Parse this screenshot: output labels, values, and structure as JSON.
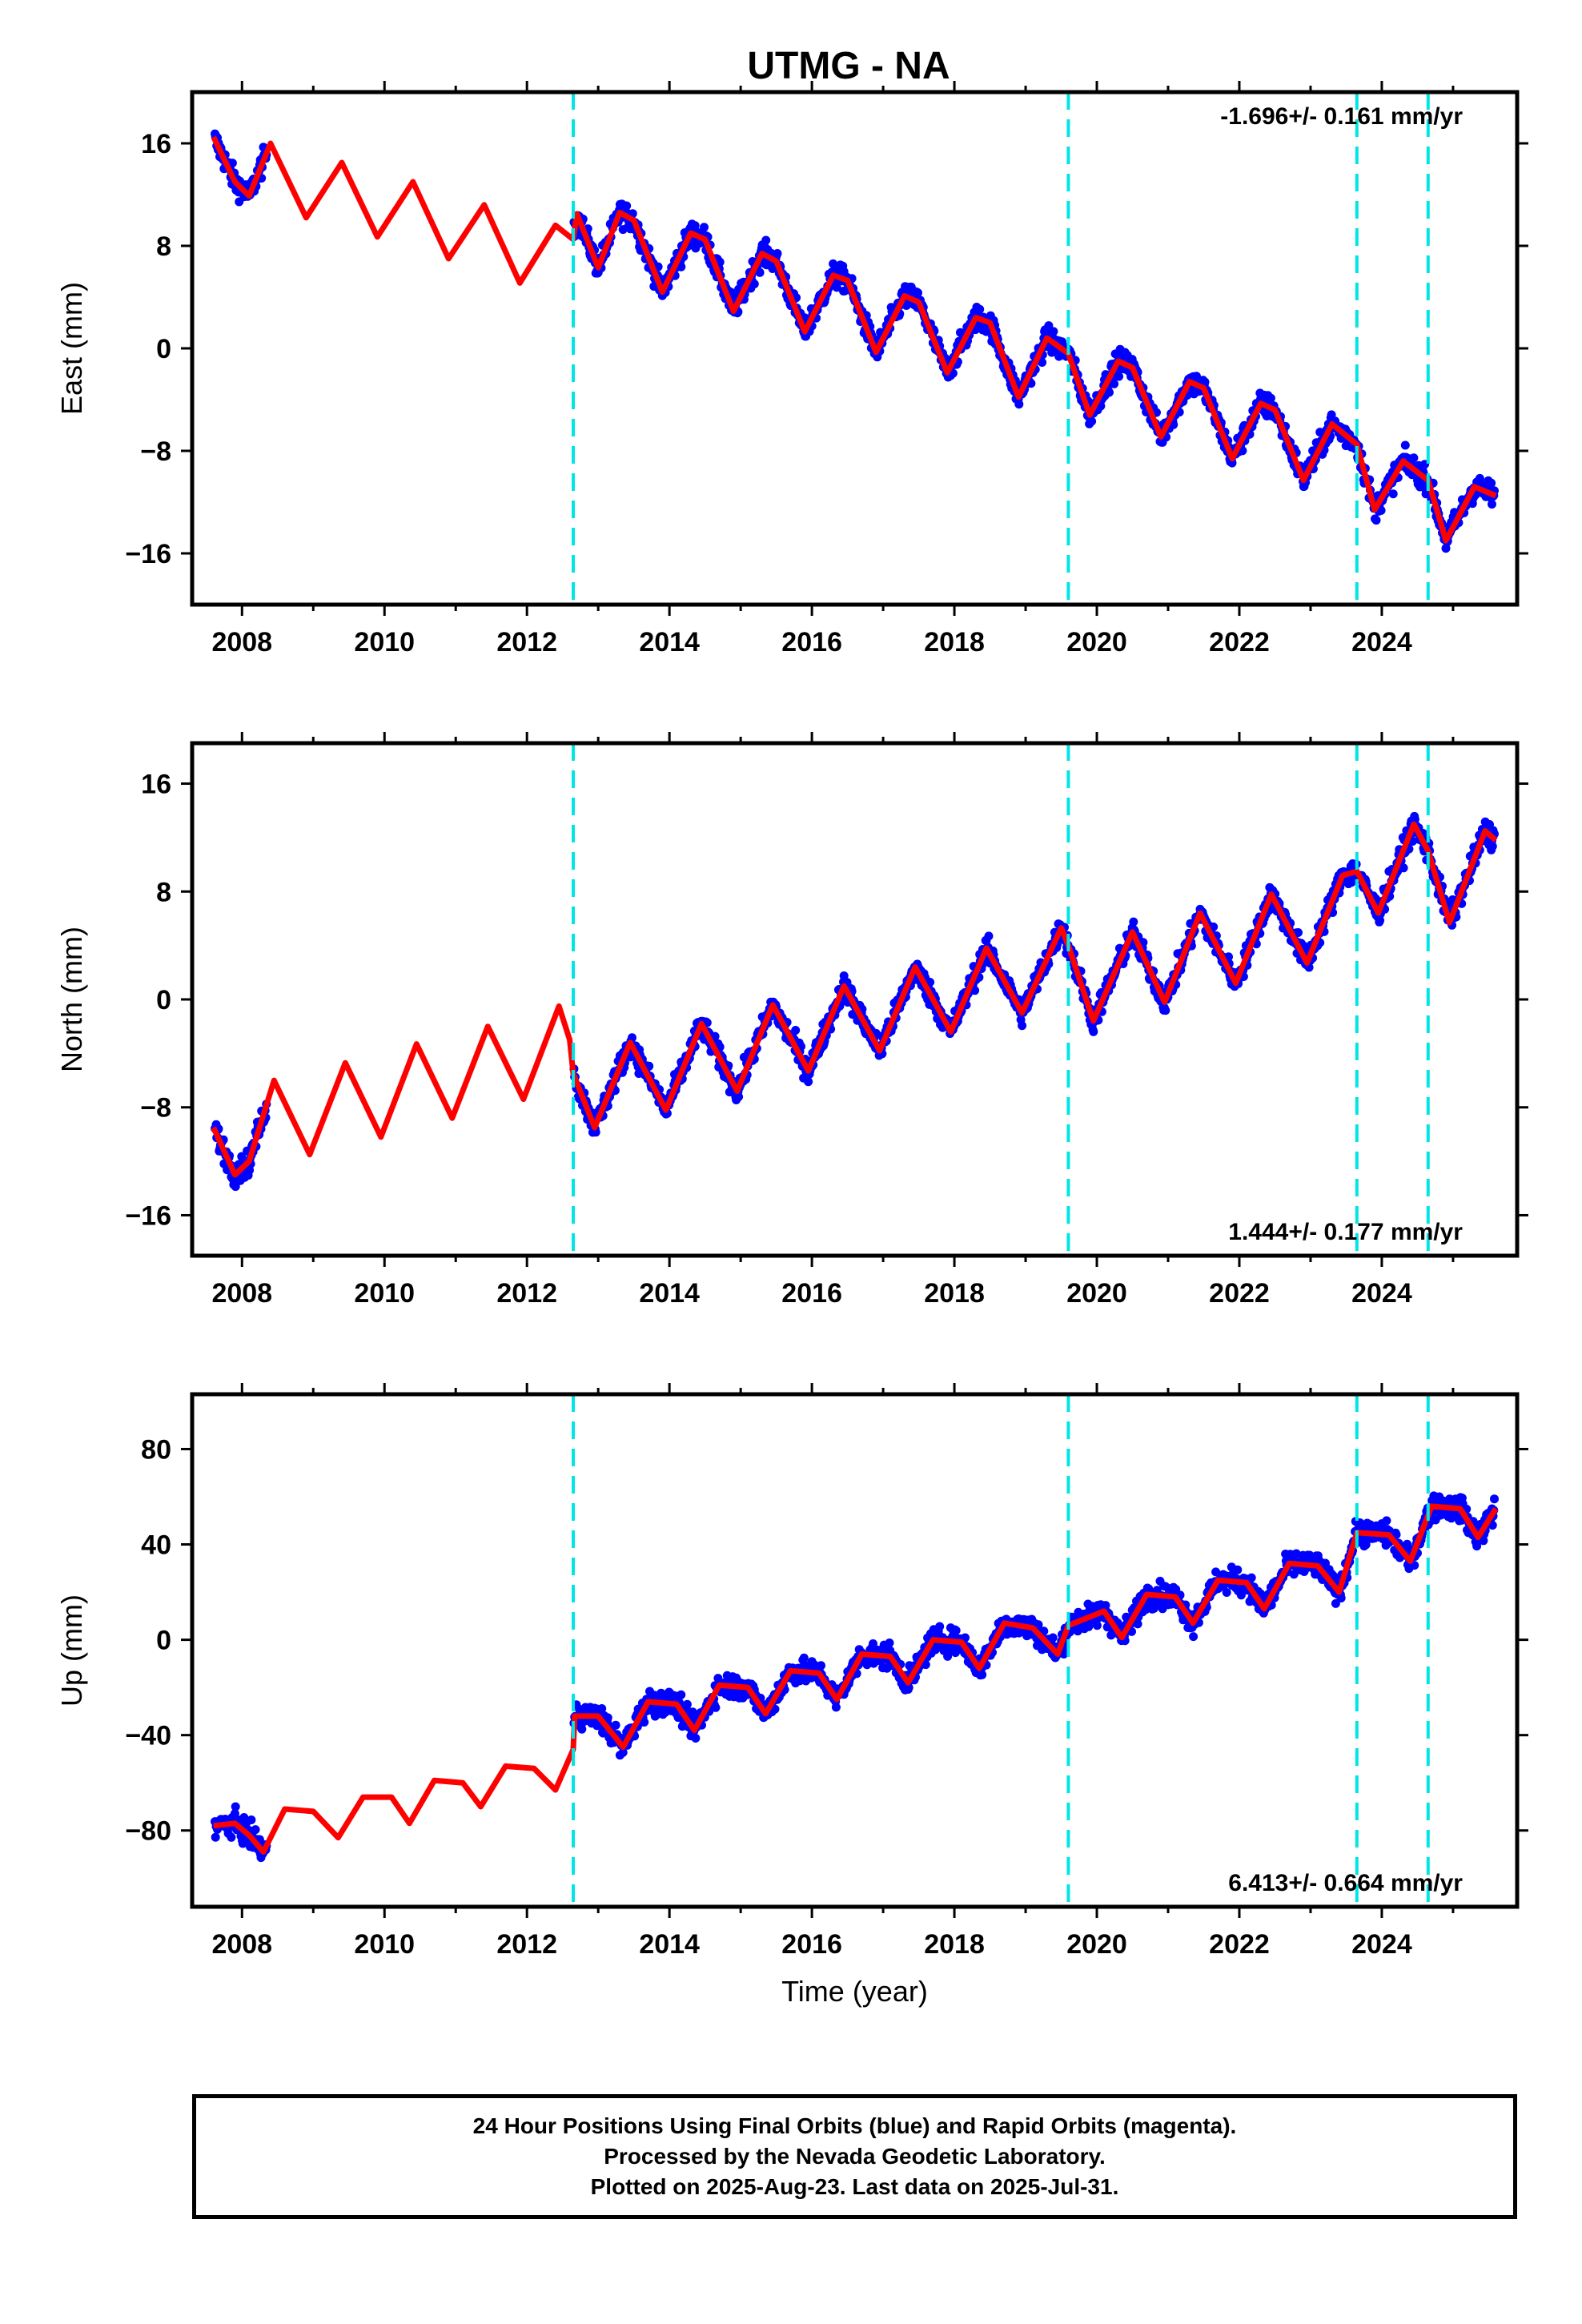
{
  "title": "UTMG - NA",
  "footer": {
    "line1": "24 Hour Positions Using Final Orbits (blue) and Rapid Orbits (magenta).",
    "line2": "Processed by the Nevada Geodetic Laboratory.",
    "line3": "Plotted on 2025-Aug-23. Last data on 2025-Jul-31."
  },
  "colors": {
    "data": "#0000ff",
    "model": "#ff0000",
    "break": "#00e5e5",
    "frame": "#000000"
  },
  "chart_data": [
    {
      "type": "scatter",
      "panel": "east",
      "ylabel": "East (mm)",
      "rate_text": "-1.696+/- 0.161 mm/yr",
      "rate_position": "top-right",
      "xlim": [
        2007.3,
        2025.9
      ],
      "ylim": [
        -20,
        20
      ],
      "xticks": [
        "2008",
        "2010",
        "2012",
        "2014",
        "2016",
        "2018",
        "2020",
        "2022",
        "2024"
      ],
      "yticks": [
        "16",
        "8",
        "0",
        "−8",
        "−16"
      ],
      "ytick_values": [
        16,
        8,
        0,
        -8,
        -16
      ],
      "breaks": [
        2012.65,
        2019.6,
        2023.65,
        2024.65
      ],
      "series": [
        {
          "values": [
            [
              2007.6,
              16.5
            ],
            [
              2007.9,
              13.0
            ],
            [
              2008.1,
              11.9
            ],
            [
              2008.4,
              16.0
            ],
            [
              2008.9,
              10.2
            ],
            [
              2009.4,
              14.5
            ],
            [
              2009.9,
              8.7
            ],
            [
              2010.4,
              13.0
            ],
            [
              2010.9,
              7.0
            ],
            [
              2011.4,
              11.2
            ],
            [
              2011.9,
              5.1
            ],
            [
              2012.4,
              9.6
            ],
            [
              2012.65,
              8.5
            ],
            [
              2012.7,
              10.5
            ],
            [
              2013.0,
              6.3
            ],
            [
              2013.3,
              10.6
            ],
            [
              2013.5,
              10.0
            ],
            [
              2013.9,
              4.4
            ],
            [
              2014.3,
              9.0
            ],
            [
              2014.5,
              8.5
            ],
            [
              2014.9,
              2.9
            ],
            [
              2015.3,
              7.4
            ],
            [
              2015.5,
              6.8
            ],
            [
              2015.9,
              1.3
            ],
            [
              2016.3,
              5.7
            ],
            [
              2016.5,
              5.3
            ],
            [
              2016.9,
              -0.3
            ],
            [
              2017.3,
              4.1
            ],
            [
              2017.5,
              3.6
            ],
            [
              2017.9,
              -1.9
            ],
            [
              2018.3,
              2.4
            ],
            [
              2018.5,
              2.0
            ],
            [
              2018.9,
              -3.8
            ],
            [
              2019.3,
              0.8
            ],
            [
              2019.6,
              -0.4
            ],
            [
              2019.9,
              -5.2
            ],
            [
              2020.3,
              -1.0
            ],
            [
              2020.5,
              -1.5
            ],
            [
              2020.9,
              -6.9
            ],
            [
              2021.3,
              -2.6
            ],
            [
              2021.5,
              -3.1
            ],
            [
              2021.9,
              -8.6
            ],
            [
              2022.3,
              -4.3
            ],
            [
              2022.5,
              -4.8
            ],
            [
              2022.9,
              -10.3
            ],
            [
              2023.3,
              -5.9
            ],
            [
              2023.65,
              -7.5
            ],
            [
              2023.9,
              -12.6
            ],
            [
              2024.3,
              -8.8
            ],
            [
              2024.65,
              -10.3
            ],
            [
              2024.9,
              -15.0
            ],
            [
              2025.3,
              -10.8
            ],
            [
              2025.6,
              -11.5
            ]
          ]
        }
      ]
    },
    {
      "type": "scatter",
      "panel": "north",
      "ylabel": "North (mm)",
      "rate_text": "1.444+/- 0.177 mm/yr",
      "rate_position": "bottom-right",
      "xlim": [
        2007.3,
        2025.9
      ],
      "ylim": [
        -19,
        19
      ],
      "xticks": [
        "2008",
        "2010",
        "2012",
        "2014",
        "2016",
        "2018",
        "2020",
        "2022",
        "2024"
      ],
      "yticks": [
        "16",
        "8",
        "0",
        "−8",
        "−16"
      ],
      "ytick_values": [
        16,
        8,
        0,
        -8,
        -16
      ],
      "breaks": [
        2012.65,
        2019.6,
        2023.65,
        2024.65
      ],
      "series": [
        {
          "values": [
            [
              2007.6,
              -9.5
            ],
            [
              2007.9,
              -13.0
            ],
            [
              2008.1,
              -12.0
            ],
            [
              2008.45,
              -6.0
            ],
            [
              2008.95,
              -11.5
            ],
            [
              2009.45,
              -4.7
            ],
            [
              2009.95,
              -10.2
            ],
            [
              2010.45,
              -3.3
            ],
            [
              2010.95,
              -8.8
            ],
            [
              2011.45,
              -2.0
            ],
            [
              2011.95,
              -7.4
            ],
            [
              2012.45,
              -0.5
            ],
            [
              2012.6,
              -3.0
            ],
            [
              2012.65,
              -5.5
            ],
            [
              2012.95,
              -9.5
            ],
            [
              2013.45,
              -3.2
            ],
            [
              2013.95,
              -8.2
            ],
            [
              2014.45,
              -1.8
            ],
            [
              2014.95,
              -6.8
            ],
            [
              2015.45,
              -0.4
            ],
            [
              2015.95,
              -5.3
            ],
            [
              2016.45,
              1.0
            ],
            [
              2016.95,
              -3.8
            ],
            [
              2017.45,
              2.4
            ],
            [
              2017.95,
              -2.4
            ],
            [
              2018.45,
              3.8
            ],
            [
              2018.95,
              -1.0
            ],
            [
              2019.5,
              5.3
            ],
            [
              2019.6,
              4.0
            ],
            [
              2019.95,
              -1.6
            ],
            [
              2020.5,
              5.0
            ],
            [
              2020.95,
              -0.2
            ],
            [
              2021.45,
              6.4
            ],
            [
              2021.95,
              1.2
            ],
            [
              2022.45,
              7.8
            ],
            [
              2022.95,
              2.7
            ],
            [
              2023.45,
              9.2
            ],
            [
              2023.65,
              9.5
            ],
            [
              2023.95,
              6.4
            ],
            [
              2024.45,
              13.0
            ],
            [
              2024.65,
              11.0
            ],
            [
              2024.95,
              5.7
            ],
            [
              2025.45,
              12.5
            ],
            [
              2025.6,
              11.8
            ]
          ]
        }
      ]
    },
    {
      "type": "scatter",
      "panel": "up",
      "ylabel": "Up (mm)",
      "xlabel": "Time (year)",
      "rate_text": "6.413+/- 0.664 mm/yr",
      "rate_position": "bottom-right",
      "xlim": [
        2007.3,
        2025.9
      ],
      "ylim": [
        -112,
        103
      ],
      "xticks": [
        "2008",
        "2010",
        "2012",
        "2014",
        "2016",
        "2018",
        "2020",
        "2022",
        "2024"
      ],
      "yticks": [
        "80",
        "40",
        "0",
        "−40",
        "−80"
      ],
      "ytick_values": [
        80,
        40,
        0,
        -40,
        -80
      ],
      "breaks": [
        2012.65,
        2019.6,
        2023.65,
        2024.65
      ],
      "series": [
        {
          "values": [
            [
              2007.6,
              -78
            ],
            [
              2007.9,
              -77
            ],
            [
              2008.1,
              -82
            ],
            [
              2008.3,
              -89
            ],
            [
              2008.6,
              -71
            ],
            [
              2009.0,
              -72
            ],
            [
              2009.35,
              -83
            ],
            [
              2009.7,
              -66
            ],
            [
              2010.1,
              -66
            ],
            [
              2010.35,
              -77
            ],
            [
              2010.7,
              -59
            ],
            [
              2011.1,
              -60
            ],
            [
              2011.35,
              -70
            ],
            [
              2011.7,
              -53
            ],
            [
              2012.1,
              -54
            ],
            [
              2012.4,
              -63
            ],
            [
              2012.65,
              -46
            ],
            [
              2012.67,
              -32
            ],
            [
              2013.0,
              -32
            ],
            [
              2013.35,
              -45
            ],
            [
              2013.7,
              -26
            ],
            [
              2014.1,
              -27
            ],
            [
              2014.35,
              -38
            ],
            [
              2014.7,
              -19
            ],
            [
              2015.1,
              -20
            ],
            [
              2015.35,
              -31
            ],
            [
              2015.7,
              -13
            ],
            [
              2016.1,
              -14
            ],
            [
              2016.35,
              -25
            ],
            [
              2016.7,
              -6
            ],
            [
              2017.1,
              -7
            ],
            [
              2017.35,
              -18
            ],
            [
              2017.7,
              0
            ],
            [
              2018.1,
              -1
            ],
            [
              2018.35,
              -12
            ],
            [
              2018.7,
              7
            ],
            [
              2019.1,
              5
            ],
            [
              2019.45,
              -6
            ],
            [
              2019.6,
              6
            ],
            [
              2020.1,
              12
            ],
            [
              2020.35,
              1
            ],
            [
              2020.7,
              19
            ],
            [
              2021.1,
              18
            ],
            [
              2021.35,
              7
            ],
            [
              2021.7,
              25
            ],
            [
              2022.1,
              24
            ],
            [
              2022.35,
              13
            ],
            [
              2022.7,
              32
            ],
            [
              2023.1,
              31
            ],
            [
              2023.4,
              20
            ],
            [
              2023.65,
              45
            ],
            [
              2024.1,
              44
            ],
            [
              2024.4,
              33
            ],
            [
              2024.7,
              56
            ],
            [
              2025.1,
              55
            ],
            [
              2025.35,
              43
            ],
            [
              2025.6,
              55
            ]
          ]
        }
      ]
    }
  ]
}
